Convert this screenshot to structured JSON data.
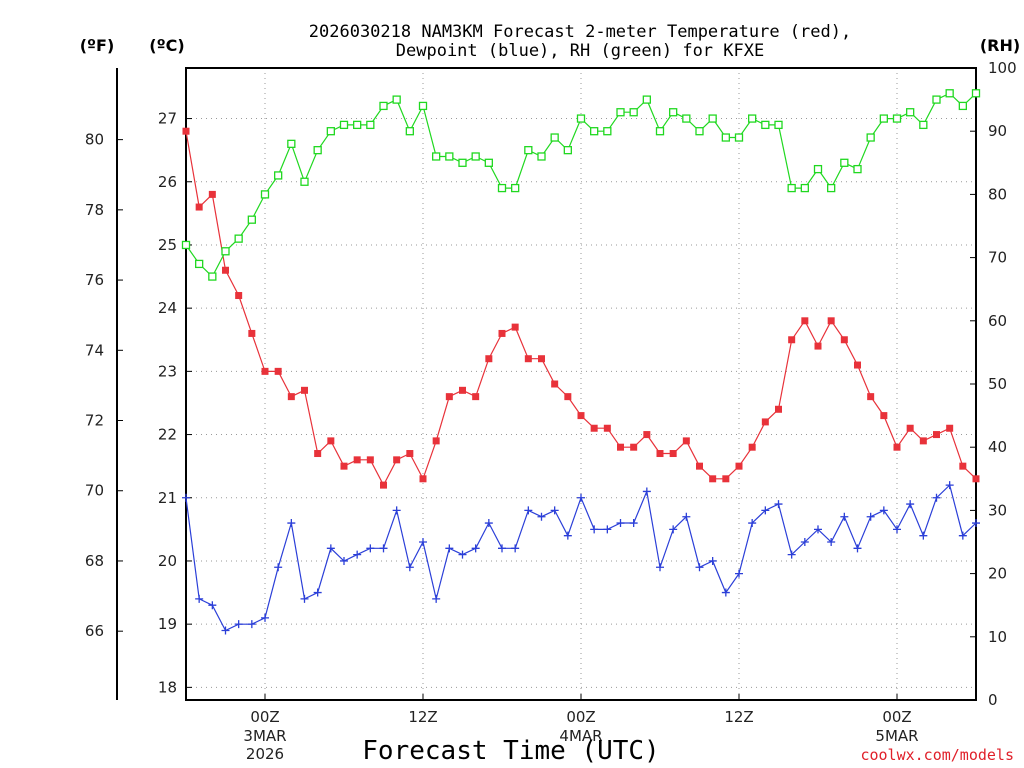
{
  "chart_data": {
    "type": "line",
    "title_line1": "2026030218 NAM3KM Forecast 2-meter Temperature (red),",
    "title_line2": "Dewpoint (blue), RH (green) for KFXE",
    "unit_f": "(ºF)",
    "unit_c": "(ºC)",
    "unit_rh": "(RH)",
    "xlabel": "Forecast Time (UTC)",
    "credit": "coolwx.com/models",
    "x_hours": [
      0,
      1,
      2,
      3,
      4,
      5,
      6,
      7,
      8,
      9,
      10,
      11,
      12,
      13,
      14,
      15,
      16,
      17,
      18,
      19,
      20,
      21,
      22,
      23,
      24,
      25,
      26,
      27,
      28,
      29,
      30,
      31,
      32,
      33,
      34,
      35,
      36,
      37,
      38,
      39,
      40,
      41,
      42,
      43,
      44,
      45,
      46,
      47,
      48,
      49,
      50,
      51,
      52,
      53,
      54,
      55,
      56,
      57,
      58,
      59,
      60
    ],
    "x_range_hours": [
      0,
      60
    ],
    "x_ticks": [
      {
        "hour": 6,
        "label": "00Z",
        "sub1": "3MAR",
        "sub2": "2026"
      },
      {
        "hour": 18,
        "label": "12Z",
        "sub1": "",
        "sub2": ""
      },
      {
        "hour": 30,
        "label": "00Z",
        "sub1": "4MAR",
        "sub2": ""
      },
      {
        "hour": 42,
        "label": "12Z",
        "sub1": "",
        "sub2": ""
      },
      {
        "hour": 54,
        "label": "00Z",
        "sub1": "5MAR",
        "sub2": ""
      }
    ],
    "c_range": [
      17.8,
      27.8
    ],
    "c_ticks": [
      "18",
      "19",
      "20",
      "21",
      "22",
      "23",
      "24",
      "25",
      "26",
      "27"
    ],
    "f_ticks": [
      "66",
      "68",
      "70",
      "72",
      "74",
      "76",
      "78",
      "80"
    ],
    "rh_range": [
      0,
      100
    ],
    "rh_ticks": [
      "0",
      "10",
      "20",
      "30",
      "40",
      "50",
      "60",
      "70",
      "80",
      "90",
      "100"
    ],
    "series": [
      {
        "name": "Temperature",
        "units": "C",
        "color": "#e8323a",
        "marker": "filled-square",
        "values": [
          26.8,
          25.6,
          25.8,
          24.6,
          24.2,
          23.6,
          23.0,
          23.0,
          22.6,
          22.7,
          21.7,
          21.9,
          21.5,
          21.6,
          21.6,
          21.2,
          21.6,
          21.7,
          21.3,
          21.9,
          22.6,
          22.7,
          22.6,
          23.2,
          23.6,
          23.7,
          23.2,
          23.2,
          22.8,
          22.6,
          22.3,
          22.1,
          22.1,
          21.8,
          21.8,
          22.0,
          21.7,
          21.7,
          21.9,
          21.5,
          21.3,
          21.3,
          21.5,
          21.8,
          22.2,
          22.4,
          23.5,
          23.8,
          23.4,
          23.8,
          23.5,
          23.1,
          22.6,
          22.3,
          21.8,
          22.1,
          21.9,
          22.0,
          22.1,
          21.5,
          21.3
        ]
      },
      {
        "name": "Dewpoint",
        "units": "C",
        "color": "#2b3fd8",
        "marker": "plus",
        "values": [
          21.0,
          19.4,
          19.3,
          18.9,
          19.0,
          19.0,
          19.1,
          19.9,
          20.6,
          19.4,
          19.5,
          20.2,
          20.0,
          20.1,
          20.2,
          20.2,
          20.8,
          19.9,
          20.3,
          19.4,
          20.2,
          20.1,
          20.2,
          20.6,
          20.2,
          20.2,
          20.8,
          20.7,
          20.8,
          20.4,
          21.0,
          20.5,
          20.5,
          20.6,
          20.6,
          21.1,
          19.9,
          20.5,
          20.7,
          19.9,
          20.0,
          19.5,
          19.8,
          20.6,
          20.8,
          20.9,
          20.1,
          20.3,
          20.5,
          20.3,
          20.7,
          20.2,
          20.7,
          20.8,
          20.5,
          20.9,
          20.4,
          21.0,
          21.2,
          20.4,
          20.6
        ]
      },
      {
        "name": "RH",
        "units": "%",
        "color": "#20d820",
        "marker": "open-square",
        "values": [
          72,
          69,
          67,
          71,
          73,
          76,
          80,
          83,
          88,
          82,
          87,
          90,
          91,
          91,
          91,
          94,
          95,
          90,
          94,
          86,
          86,
          85,
          86,
          85,
          81,
          81,
          87,
          86,
          89,
          87,
          92,
          90,
          90,
          93,
          93,
          95,
          90,
          93,
          92,
          90,
          92,
          89,
          89,
          92,
          91,
          91,
          81,
          81,
          84,
          81,
          85,
          84,
          89,
          92,
          92,
          93,
          91,
          95,
          96,
          94,
          96
        ]
      }
    ]
  }
}
